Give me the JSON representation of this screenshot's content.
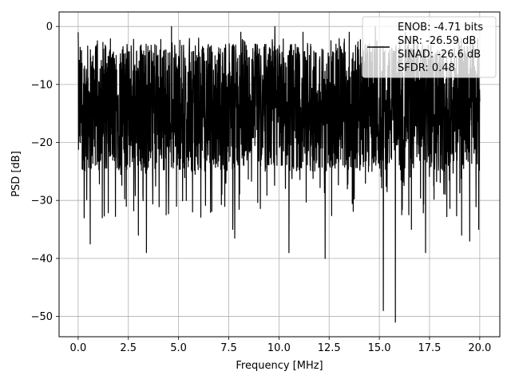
{
  "chart_data": {
    "type": "line",
    "title": "",
    "xlabel": "Frequency [MHz]",
    "ylabel": "PSD [dB]",
    "xlim": [
      -0.95,
      21.0
    ],
    "ylim": [
      -53.5,
      2.5
    ],
    "xticks": [
      0.0,
      2.5,
      5.0,
      7.5,
      10.0,
      12.5,
      15.0,
      17.5,
      20.0
    ],
    "xtick_labels": [
      "0.0",
      "2.5",
      "5.0",
      "7.5",
      "10.0",
      "12.5",
      "15.0",
      "17.5",
      "20.0"
    ],
    "yticks": [
      0,
      -10,
      -20,
      -30,
      -40,
      -50
    ],
    "ytick_labels": [
      "0",
      "−10",
      "−20",
      "−30",
      "−40",
      "−50"
    ],
    "grid": true,
    "legend_position": "top-right",
    "legend_lines": [
      "ENOB: -4.71 bits",
      "SNR: -26.59 dB",
      "SINAD: -26.6 dB",
      "SFDR: 0.48"
    ],
    "series": [
      {
        "color": "#000000",
        "x_start": 0.0,
        "x_end": 20.0,
        "noise_floor_mean": -14,
        "envelope_upper": -5,
        "envelope_lower": -25,
        "peaks": [
          {
            "x": 0.0,
            "y": -1
          },
          {
            "x": 4.65,
            "y": 0
          },
          {
            "x": 6.0,
            "y": -2
          },
          {
            "x": 8.1,
            "y": -1
          },
          {
            "x": 9.8,
            "y": 0
          },
          {
            "x": 11.2,
            "y": -1
          },
          {
            "x": 13.5,
            "y": -1
          },
          {
            "x": 14.8,
            "y": 0
          },
          {
            "x": 16.3,
            "y": -1
          },
          {
            "x": 19.7,
            "y": -3
          }
        ],
        "dips": [
          {
            "x": 0.3,
            "y": -33
          },
          {
            "x": 0.6,
            "y": -37.5
          },
          {
            "x": 1.2,
            "y": -33
          },
          {
            "x": 2.4,
            "y": -31
          },
          {
            "x": 3.0,
            "y": -36
          },
          {
            "x": 3.4,
            "y": -39
          },
          {
            "x": 4.9,
            "y": -31
          },
          {
            "x": 5.7,
            "y": -32
          },
          {
            "x": 7.7,
            "y": -35
          },
          {
            "x": 7.8,
            "y": -36.5
          },
          {
            "x": 10.5,
            "y": -39
          },
          {
            "x": 12.3,
            "y": -40
          },
          {
            "x": 15.2,
            "y": -49
          },
          {
            "x": 15.8,
            "y": -51
          },
          {
            "x": 16.6,
            "y": -35
          },
          {
            "x": 17.3,
            "y": -39
          },
          {
            "x": 19.1,
            "y": -36
          },
          {
            "x": 19.5,
            "y": -37
          },
          {
            "x": 19.95,
            "y": -35
          }
        ]
      }
    ]
  }
}
